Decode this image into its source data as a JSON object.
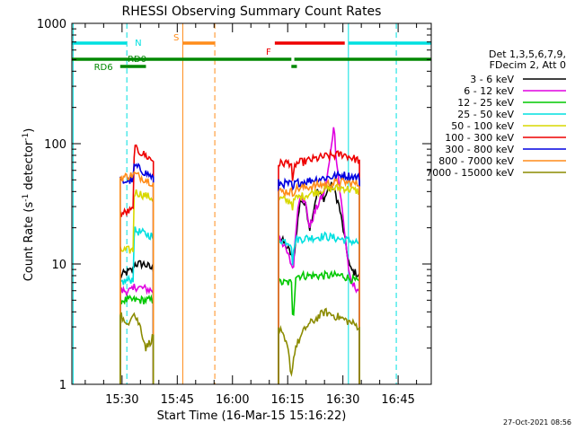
{
  "chart_data": {
    "type": "line",
    "title": "RHESSI Observing Summary Count Rates",
    "xlabel": "Start Time (16-Mar-15 15:16:22)",
    "ylabel_pre": "Count Rate (s",
    "ylabel_sup1": "-1",
    "ylabel_mid": " detector",
    "ylabel_sup2": "-1",
    "ylabel_post": ")",
    "ylabel": "Count Rate (s-1 detector-1)",
    "x_unit": "minutes of day (UT)",
    "xlim": [
      916.37,
      1014
    ],
    "ylim": [
      1,
      1000
    ],
    "yscale": "log",
    "x_ticks": [
      {
        "t": 930,
        "label": "15:30"
      },
      {
        "t": 945,
        "label": "15:45"
      },
      {
        "t": 960,
        "label": "16:00"
      },
      {
        "t": 975,
        "label": "16:15"
      },
      {
        "t": 990,
        "label": "16:30"
      },
      {
        "t": 1005,
        "label": "16:45"
      }
    ],
    "y_ticks": [
      {
        "v": 1,
        "label": "1"
      },
      {
        "v": 10,
        "label": "10"
      },
      {
        "v": 100,
        "label": "100"
      },
      {
        "v": 1000,
        "label": "1000"
      }
    ],
    "legend": {
      "position": "right",
      "header": [
        "Det 1,3,5,6,7,9,",
        "FDecim 2, Att 0"
      ],
      "entries": [
        {
          "label": "3 - 6 keV",
          "color": "#000000"
        },
        {
          "label": "6 - 12 keV",
          "color": "#e000e0"
        },
        {
          "label": "12 - 25 keV",
          "color": "#00c800"
        },
        {
          "label": "25 - 50 keV",
          "color": "#00e0e0"
        },
        {
          "label": "50 - 100 keV",
          "color": "#d8d800"
        },
        {
          "label": "100 - 300 keV",
          "color": "#ee0000"
        },
        {
          "label": "300 - 800 keV",
          "color": "#0000e0"
        },
        {
          "label": "800 - 7000 keV",
          "color": "#ff8c1a"
        },
        {
          "label": "7000 - 15000 keV",
          "color": "#8b8b00"
        }
      ]
    },
    "segments": [
      {
        "start": 929.5,
        "end": 938.5
      },
      {
        "start": 972.5,
        "end": 994.5
      }
    ],
    "series": [
      {
        "label": "3 - 6 keV",
        "color": "#000000",
        "points": [
          [
            929.5,
            8
          ],
          [
            933,
            9
          ],
          [
            933.3,
            10
          ],
          [
            936,
            10
          ],
          [
            938.5,
            9
          ],
          [
            972.5,
            17
          ],
          [
            974,
            15
          ],
          [
            976,
            12
          ],
          [
            976.5,
            10
          ],
          [
            977.5,
            20
          ],
          [
            978.5,
            35
          ],
          [
            980,
            30
          ],
          [
            981,
            20
          ],
          [
            982,
            28
          ],
          [
            983,
            40
          ],
          [
            985,
            35
          ],
          [
            986,
            42
          ],
          [
            987,
            45
          ],
          [
            988,
            38
          ],
          [
            989,
            30
          ],
          [
            990,
            20
          ],
          [
            991,
            13
          ],
          [
            992,
            9
          ],
          [
            994.5,
            8
          ]
        ]
      },
      {
        "label": "6 - 12 keV",
        "color": "#e000e0",
        "points": [
          [
            929.5,
            6
          ],
          [
            933,
            6
          ],
          [
            933.3,
            6.5
          ],
          [
            938.5,
            6
          ],
          [
            972.5,
            18
          ],
          [
            975,
            12
          ],
          [
            976.5,
            9
          ],
          [
            977.5,
            25
          ],
          [
            978.5,
            40
          ],
          [
            980,
            30
          ],
          [
            981,
            20
          ],
          [
            982,
            25
          ],
          [
            983,
            30
          ],
          [
            985,
            40
          ],
          [
            986,
            60
          ],
          [
            987,
            100
          ],
          [
            987.5,
            150
          ],
          [
            988,
            90
          ],
          [
            989,
            45
          ],
          [
            990,
            25
          ],
          [
            991,
            13
          ],
          [
            992,
            7
          ],
          [
            994.5,
            6
          ]
        ]
      },
      {
        "label": "12 - 25 keV",
        "color": "#00c800",
        "points": [
          [
            929.5,
            5
          ],
          [
            938.5,
            5
          ],
          [
            972.5,
            7
          ],
          [
            976,
            7
          ],
          [
            976.3,
            4
          ],
          [
            976.8,
            4
          ],
          [
            977,
            8
          ],
          [
            985,
            8
          ],
          [
            990,
            8
          ],
          [
            994.5,
            7
          ]
        ]
      },
      {
        "label": "25 - 50 keV",
        "color": "#00e0e0",
        "points": [
          [
            929.5,
            7
          ],
          [
            933,
            7.5
          ],
          [
            933.3,
            19
          ],
          [
            938.5,
            17
          ],
          [
            972.5,
            16
          ],
          [
            976,
            15
          ],
          [
            976.3,
            10
          ],
          [
            977,
            16
          ],
          [
            985,
            17
          ],
          [
            990,
            16
          ],
          [
            994.5,
            15
          ]
        ]
      },
      {
        "label": "50 - 100 keV",
        "color": "#d8d800",
        "points": [
          [
            929.5,
            13
          ],
          [
            933,
            13
          ],
          [
            933.3,
            40
          ],
          [
            938.5,
            35
          ],
          [
            972.5,
            35
          ],
          [
            976,
            33
          ],
          [
            976.3,
            30
          ],
          [
            977,
            35
          ],
          [
            985,
            42
          ],
          [
            990,
            43
          ],
          [
            994.5,
            40
          ]
        ]
      },
      {
        "label": "100 - 300 keV",
        "color": "#ee0000",
        "points": [
          [
            929.5,
            26
          ],
          [
            933,
            28
          ],
          [
            933.3,
            92
          ],
          [
            938.5,
            72
          ],
          [
            972.5,
            68
          ],
          [
            976,
            70
          ],
          [
            976.3,
            45
          ],
          [
            977,
            68
          ],
          [
            985,
            78
          ],
          [
            990,
            82
          ],
          [
            994.5,
            72
          ]
        ]
      },
      {
        "label": "300 - 800 keV",
        "color": "#0000e0",
        "points": [
          [
            929.5,
            48
          ],
          [
            933,
            50
          ],
          [
            933.3,
            66
          ],
          [
            938.5,
            52
          ],
          [
            972.5,
            47
          ],
          [
            976,
            46
          ],
          [
            976.3,
            40
          ],
          [
            977,
            47
          ],
          [
            985,
            52
          ],
          [
            990,
            55
          ],
          [
            994.5,
            52
          ]
        ]
      },
      {
        "label": "800 - 7000 keV",
        "color": "#ff8c1a",
        "points": [
          [
            929.5,
            52
          ],
          [
            933,
            55
          ],
          [
            933.3,
            56
          ],
          [
            938.5,
            47
          ],
          [
            972.5,
            40
          ],
          [
            976,
            40
          ],
          [
            976.3,
            38
          ],
          [
            977,
            42
          ],
          [
            985,
            46
          ],
          [
            990,
            48
          ],
          [
            994.5,
            46
          ]
        ]
      },
      {
        "label": "7000 - 15000 keV",
        "color": "#8b8b00",
        "points": [
          [
            929.5,
            4
          ],
          [
            931,
            3
          ],
          [
            933,
            4
          ],
          [
            935,
            3
          ],
          [
            936.5,
            2
          ],
          [
            938.5,
            2.5
          ],
          [
            972.5,
            3
          ],
          [
            975,
            2
          ],
          [
            976,
            1.2
          ],
          [
            977,
            2
          ],
          [
            980,
            3
          ],
          [
            985,
            4
          ],
          [
            990,
            3.5
          ],
          [
            994.5,
            3
          ]
        ]
      }
    ],
    "state_bars": [
      {
        "label": "N",
        "color": "#00e0e0",
        "row": "top",
        "intervals": [
          [
            916.37,
            931.3
          ],
          [
            991.5,
            1014
          ]
        ]
      },
      {
        "label": "S",
        "color": "#ff8c1a",
        "row": "top",
        "intervals": [
          [
            946.5,
            955.2
          ]
        ]
      },
      {
        "label": "F",
        "color": "#ee0000",
        "row": "top",
        "intervals": [
          [
            971.5,
            990.5
          ]
        ]
      },
      {
        "label": "RD0",
        "color": "#008800",
        "row": "mid",
        "intervals": [
          [
            916.37,
            976
          ],
          [
            976.8,
            1014
          ]
        ]
      },
      {
        "label": "RD6",
        "color": "#008800",
        "row": "low",
        "intervals": [
          [
            929.5,
            936.5
          ],
          [
            976,
            977.5
          ]
        ]
      }
    ],
    "vlines": [
      {
        "t": 916.7,
        "color": "#00e0e0",
        "dash": false
      },
      {
        "t": 931.3,
        "color": "#00e0e0",
        "dash": true
      },
      {
        "t": 946.5,
        "color": "#ff8c1a",
        "dash": false
      },
      {
        "t": 955.2,
        "color": "#ff8c1a",
        "dash": true
      },
      {
        "t": 991.5,
        "color": "#00e0e0",
        "dash": false
      },
      {
        "t": 1004.5,
        "color": "#00e0e0",
        "dash": true
      }
    ],
    "timestamp": "27-Oct-2021 08:56"
  }
}
